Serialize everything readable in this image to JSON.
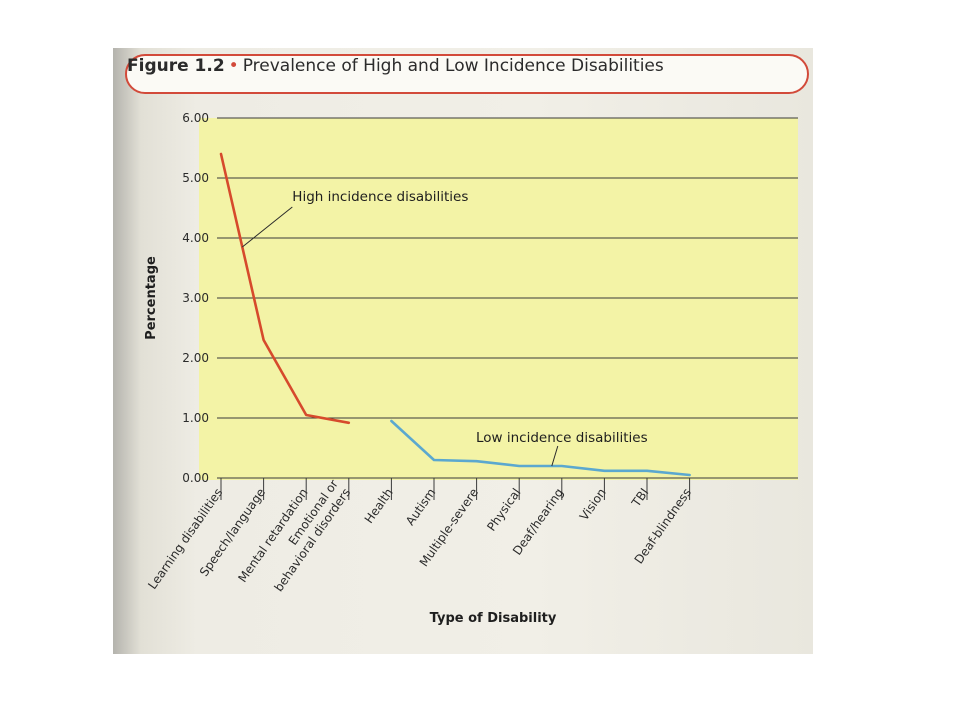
{
  "figure": {
    "label": "Figure 1.2",
    "separator": "•",
    "title": "Prevalence of High and Low Incidence Disabilities"
  },
  "colors": {
    "plot_background": "#f3f3a6",
    "high_series": "#d64a2c",
    "low_series": "#5ba8cf",
    "header_border": "#d24a3a"
  },
  "chart_data": {
    "type": "line",
    "xlabel": "Type of Disability",
    "ylabel": "Percentage",
    "ylim": [
      0,
      6
    ],
    "y_ticks": [
      "0.00",
      "1.00",
      "2.00",
      "3.00",
      "4.00",
      "5.00",
      "6.00"
    ],
    "grid": true,
    "categories": [
      "Learning disabilities",
      "Speech/language",
      "Mental retardation",
      "Emotional or behavioral disorders",
      "Health",
      "Autism",
      "Multiple-severe",
      "Physical",
      "Deaf/hearing",
      "Vision",
      "TBI",
      "Deaf-blindness"
    ],
    "category_lines": [
      [
        "Learning disabilities"
      ],
      [
        "Speech/language"
      ],
      [
        "Mental retardation"
      ],
      [
        "Emotional or",
        "behavioral disorders"
      ],
      [
        "Health"
      ],
      [
        "Autism"
      ],
      [
        "Multiple-severe"
      ],
      [
        "Physical"
      ],
      [
        "Deaf/hearing"
      ],
      [
        "Vision"
      ],
      [
        "TBI"
      ],
      [
        "Deaf-blindness"
      ]
    ],
    "series": [
      {
        "name": "High incidence disabilities",
        "color": "#d64a2c",
        "x": [
          "Learning disabilities",
          "Speech/language",
          "Mental retardation",
          "Emotional or behavioral disorders"
        ],
        "values": [
          5.4,
          2.3,
          1.05,
          0.92
        ]
      },
      {
        "name": "Low incidence disabilities",
        "color": "#5ba8cf",
        "x": [
          "Health",
          "Autism",
          "Multiple-severe",
          "Physical",
          "Deaf/hearing",
          "Vision",
          "TBI",
          "Deaf-blindness"
        ],
        "values": [
          0.95,
          0.3,
          0.28,
          0.2,
          0.2,
          0.12,
          0.12,
          0.05
        ]
      }
    ]
  }
}
